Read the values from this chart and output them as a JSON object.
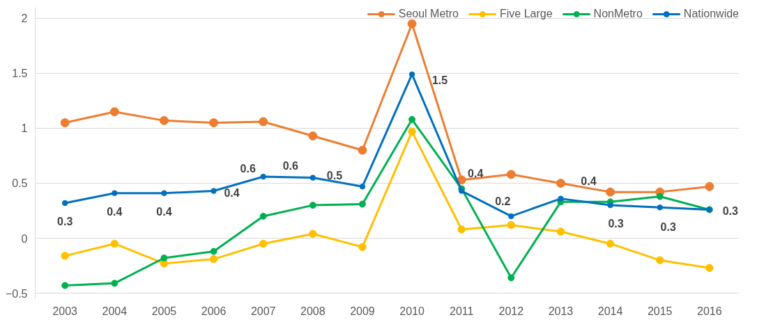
{
  "chart_data": {
    "type": "line",
    "categories": [
      "2003",
      "2004",
      "2005",
      "2006",
      "2007",
      "2008",
      "2009",
      "2010",
      "2011",
      "2012",
      "2013",
      "2014",
      "2015",
      "2016"
    ],
    "ylim": [
      -0.55,
      2.1
    ],
    "yticks": [
      -0.5,
      0,
      0.5,
      1,
      1.5,
      2
    ],
    "grid": "y",
    "legend": "top right",
    "marker": "circle",
    "line_style": "solid",
    "series": [
      {
        "name": "Seoul Metro",
        "color": "#ed7d31",
        "values": [
          1.05,
          1.15,
          1.07,
          1.05,
          1.06,
          0.93,
          0.8,
          1.95,
          0.53,
          0.58,
          0.5,
          0.42,
          0.42,
          0.47
        ]
      },
      {
        "name": "Five Large",
        "color": "#ffc000",
        "values": [
          -0.16,
          -0.05,
          -0.23,
          -0.19,
          -0.05,
          0.04,
          -0.08,
          0.97,
          0.08,
          0.12,
          0.06,
          -0.05,
          -0.2,
          -0.27
        ]
      },
      {
        "name": "NonMetro",
        "color": "#00b050",
        "values": [
          -0.43,
          -0.41,
          -0.18,
          -0.12,
          0.2,
          0.3,
          0.31,
          1.08,
          0.45,
          -0.36,
          0.33,
          0.33,
          0.38,
          0.26
        ]
      },
      {
        "name": "Nationwide",
        "color": "#0070c0",
        "values": [
          0.32,
          0.41,
          0.41,
          0.43,
          0.56,
          0.55,
          0.47,
          1.49,
          0.43,
          0.2,
          0.36,
          0.3,
          0.28,
          0.26
        ],
        "value_labels": [
          "0.3",
          "0.4",
          "0.4",
          "0.4",
          "0.6",
          "0.6",
          "0.5",
          "1.5",
          "0.4",
          "0.2",
          "0.4",
          "0.3",
          "0.3",
          "0.3"
        ]
      }
    ]
  }
}
